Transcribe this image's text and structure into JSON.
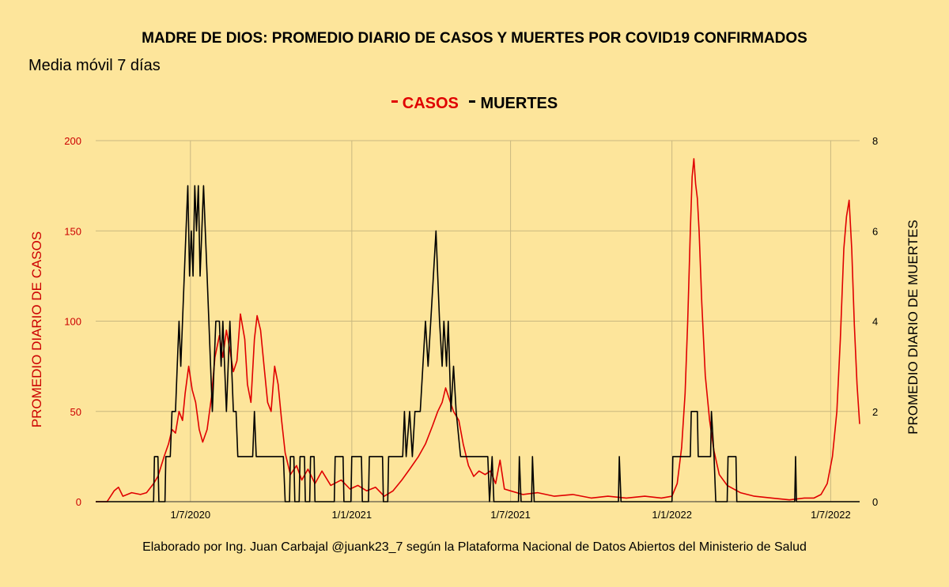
{
  "chart_data": {
    "type": "line",
    "title": "MADRE DE DIOS: PROMEDIO DIARIO DE CASOS Y MUERTES POR COVID19 CONFIRMADOS",
    "subtitle": "Media móvil 7 días",
    "ylabel": "PROMEDIO DIARIO DE CASOS",
    "y2label": "PROMEDIO DIARIO DE MUERTES",
    "ylim": [
      0,
      200
    ],
    "y2lim": [
      0,
      8
    ],
    "yticks": [
      "0",
      "50",
      "100",
      "150",
      "200"
    ],
    "y2ticks": [
      "0",
      "2",
      "4",
      "6",
      "8"
    ],
    "xticks": [
      "1/7/2020",
      "1/1/2021",
      "1/7/2021",
      "1/1/2022",
      "1/7/2022"
    ],
    "grid": true,
    "legend_position": "top",
    "series": [
      {
        "name": "CASOS",
        "axis": "left",
        "color": "#e00000",
        "points": [
          [
            "2020-03-15",
            0
          ],
          [
            "2020-03-28",
            0
          ],
          [
            "2020-04-05",
            6
          ],
          [
            "2020-04-10",
            8
          ],
          [
            "2020-04-15",
            3
          ],
          [
            "2020-04-25",
            5
          ],
          [
            "2020-05-05",
            4
          ],
          [
            "2020-05-12",
            5
          ],
          [
            "2020-05-20",
            10
          ],
          [
            "2020-05-25",
            14
          ],
          [
            "2020-06-01",
            25
          ],
          [
            "2020-06-06",
            32
          ],
          [
            "2020-06-10",
            40
          ],
          [
            "2020-06-14",
            38
          ],
          [
            "2020-06-18",
            50
          ],
          [
            "2020-06-22",
            45
          ],
          [
            "2020-06-25",
            60
          ],
          [
            "2020-06-29",
            75
          ],
          [
            "2020-07-03",
            62
          ],
          [
            "2020-07-07",
            55
          ],
          [
            "2020-07-11",
            40
          ],
          [
            "2020-07-15",
            33
          ],
          [
            "2020-07-20",
            40
          ],
          [
            "2020-07-25",
            58
          ],
          [
            "2020-07-29",
            80
          ],
          [
            "2020-08-03",
            92
          ],
          [
            "2020-08-07",
            80
          ],
          [
            "2020-08-11",
            95
          ],
          [
            "2020-08-15",
            84
          ],
          [
            "2020-08-19",
            72
          ],
          [
            "2020-08-23",
            78
          ],
          [
            "2020-08-27",
            104
          ],
          [
            "2020-09-01",
            90
          ],
          [
            "2020-09-04",
            65
          ],
          [
            "2020-09-08",
            55
          ],
          [
            "2020-09-12",
            90
          ],
          [
            "2020-09-15",
            103
          ],
          [
            "2020-09-19",
            95
          ],
          [
            "2020-09-23",
            75
          ],
          [
            "2020-09-27",
            55
          ],
          [
            "2020-10-01",
            50
          ],
          [
            "2020-10-05",
            75
          ],
          [
            "2020-10-09",
            65
          ],
          [
            "2020-10-13",
            45
          ],
          [
            "2020-10-17",
            27
          ],
          [
            "2020-10-23",
            15
          ],
          [
            "2020-10-30",
            20
          ],
          [
            "2020-11-05",
            12
          ],
          [
            "2020-11-12",
            18
          ],
          [
            "2020-11-20",
            10
          ],
          [
            "2020-11-28",
            17
          ],
          [
            "2020-12-08",
            9
          ],
          [
            "2020-12-20",
            12
          ],
          [
            "2020-12-30",
            7
          ],
          [
            "2021-01-08",
            9
          ],
          [
            "2021-01-18",
            6
          ],
          [
            "2021-01-28",
            8
          ],
          [
            "2021-02-07",
            3
          ],
          [
            "2021-02-17",
            6
          ],
          [
            "2021-02-27",
            12
          ],
          [
            "2021-03-08",
            18
          ],
          [
            "2021-03-18",
            25
          ],
          [
            "2021-03-26",
            32
          ],
          [
            "2021-04-03",
            42
          ],
          [
            "2021-04-09",
            50
          ],
          [
            "2021-04-14",
            55
          ],
          [
            "2021-04-18",
            63
          ],
          [
            "2021-04-22",
            57
          ],
          [
            "2021-04-27",
            50
          ],
          [
            "2021-05-03",
            45
          ],
          [
            "2021-05-08",
            32
          ],
          [
            "2021-05-14",
            20
          ],
          [
            "2021-05-20",
            14
          ],
          [
            "2021-05-26",
            17
          ],
          [
            "2021-06-02",
            15
          ],
          [
            "2021-06-08",
            17
          ],
          [
            "2021-06-14",
            10
          ],
          [
            "2021-06-19",
            23
          ],
          [
            "2021-06-24",
            7
          ],
          [
            "2021-07-01",
            6
          ],
          [
            "2021-07-15",
            4
          ],
          [
            "2021-08-01",
            5
          ],
          [
            "2021-08-20",
            3
          ],
          [
            "2021-09-10",
            4
          ],
          [
            "2021-10-01",
            2
          ],
          [
            "2021-10-20",
            3
          ],
          [
            "2021-11-10",
            2
          ],
          [
            "2021-12-01",
            3
          ],
          [
            "2021-12-20",
            2
          ],
          [
            "2022-01-01",
            3
          ],
          [
            "2022-01-07",
            10
          ],
          [
            "2022-01-12",
            30
          ],
          [
            "2022-01-16",
            60
          ],
          [
            "2022-01-19",
            100
          ],
          [
            "2022-01-22",
            150
          ],
          [
            "2022-01-24",
            180
          ],
          [
            "2022-01-26",
            190
          ],
          [
            "2022-01-28",
            176
          ],
          [
            "2022-01-30",
            168
          ],
          [
            "2022-02-01",
            150
          ],
          [
            "2022-02-04",
            110
          ],
          [
            "2022-02-08",
            70
          ],
          [
            "2022-02-13",
            45
          ],
          [
            "2022-02-18",
            28
          ],
          [
            "2022-02-24",
            15
          ],
          [
            "2022-03-05",
            9
          ],
          [
            "2022-03-20",
            5
          ],
          [
            "2022-04-05",
            3
          ],
          [
            "2022-04-25",
            2
          ],
          [
            "2022-05-15",
            1
          ],
          [
            "2022-06-01",
            2
          ],
          [
            "2022-06-12",
            2
          ],
          [
            "2022-06-20",
            4
          ],
          [
            "2022-06-27",
            10
          ],
          [
            "2022-07-03",
            25
          ],
          [
            "2022-07-08",
            50
          ],
          [
            "2022-07-12",
            90
          ],
          [
            "2022-07-16",
            140
          ],
          [
            "2022-07-19",
            158
          ],
          [
            "2022-07-22",
            167
          ],
          [
            "2022-07-25",
            140
          ],
          [
            "2022-07-28",
            98
          ],
          [
            "2022-07-31",
            65
          ],
          [
            "2022-08-03",
            43
          ]
        ]
      },
      {
        "name": "MUERTES",
        "axis": "right",
        "color": "#000000",
        "points": [
          [
            "2020-03-15",
            0
          ],
          [
            "2020-05-20",
            0
          ],
          [
            "2020-05-21",
            1
          ],
          [
            "2020-05-25",
            1
          ],
          [
            "2020-05-26",
            0
          ],
          [
            "2020-06-02",
            0
          ],
          [
            "2020-06-03",
            1
          ],
          [
            "2020-06-08",
            1
          ],
          [
            "2020-06-10",
            2
          ],
          [
            "2020-06-14",
            2
          ],
          [
            "2020-06-16",
            3
          ],
          [
            "2020-06-18",
            4
          ],
          [
            "2020-06-20",
            3
          ],
          [
            "2020-06-22",
            4
          ],
          [
            "2020-06-24",
            5
          ],
          [
            "2020-06-26",
            6
          ],
          [
            "2020-06-28",
            7
          ],
          [
            "2020-06-30",
            5
          ],
          [
            "2020-07-02",
            6
          ],
          [
            "2020-07-04",
            5
          ],
          [
            "2020-07-06",
            7
          ],
          [
            "2020-07-08",
            6
          ],
          [
            "2020-07-10",
            7
          ],
          [
            "2020-07-12",
            5
          ],
          [
            "2020-07-14",
            6
          ],
          [
            "2020-07-16",
            7
          ],
          [
            "2020-07-18",
            6
          ],
          [
            "2020-07-20",
            5
          ],
          [
            "2020-07-22",
            4
          ],
          [
            "2020-07-24",
            3
          ],
          [
            "2020-07-26",
            2
          ],
          [
            "2020-07-28",
            3
          ],
          [
            "2020-07-30",
            4
          ],
          [
            "2020-08-03",
            4
          ],
          [
            "2020-08-05",
            3
          ],
          [
            "2020-08-07",
            4
          ],
          [
            "2020-08-09",
            3
          ],
          [
            "2020-08-11",
            2
          ],
          [
            "2020-08-13",
            3
          ],
          [
            "2020-08-15",
            4
          ],
          [
            "2020-08-17",
            3
          ],
          [
            "2020-08-19",
            2
          ],
          [
            "2020-08-22",
            2
          ],
          [
            "2020-08-24",
            1
          ],
          [
            "2020-09-10",
            1
          ],
          [
            "2020-09-12",
            2
          ],
          [
            "2020-09-14",
            1
          ],
          [
            "2020-10-15",
            1
          ],
          [
            "2020-10-17",
            0
          ],
          [
            "2020-10-22",
            0
          ],
          [
            "2020-10-23",
            1
          ],
          [
            "2020-10-27",
            1
          ],
          [
            "2020-10-28",
            0
          ],
          [
            "2020-11-02",
            0
          ],
          [
            "2020-11-03",
            1
          ],
          [
            "2020-11-08",
            1
          ],
          [
            "2020-11-09",
            0
          ],
          [
            "2020-11-14",
            0
          ],
          [
            "2020-11-15",
            1
          ],
          [
            "2020-11-19",
            1
          ],
          [
            "2020-11-20",
            0
          ],
          [
            "2020-12-12",
            0
          ],
          [
            "2020-12-13",
            1
          ],
          [
            "2020-12-22",
            1
          ],
          [
            "2020-12-23",
            0
          ],
          [
            "2020-12-31",
            0
          ],
          [
            "2021-01-01",
            1
          ],
          [
            "2021-01-12",
            1
          ],
          [
            "2021-01-13",
            0
          ],
          [
            "2021-01-20",
            0
          ],
          [
            "2021-01-21",
            1
          ],
          [
            "2021-02-05",
            1
          ],
          [
            "2021-02-06",
            0
          ],
          [
            "2021-02-11",
            0
          ],
          [
            "2021-02-12",
            1
          ],
          [
            "2021-02-28",
            1
          ],
          [
            "2021-03-02",
            2
          ],
          [
            "2021-03-04",
            1
          ],
          [
            "2021-03-08",
            2
          ],
          [
            "2021-03-11",
            1
          ],
          [
            "2021-03-14",
            2
          ],
          [
            "2021-03-20",
            2
          ],
          [
            "2021-03-23",
            3
          ],
          [
            "2021-03-26",
            4
          ],
          [
            "2021-03-29",
            3
          ],
          [
            "2021-04-01",
            4
          ],
          [
            "2021-04-04",
            5
          ],
          [
            "2021-04-07",
            6
          ],
          [
            "2021-04-09",
            5
          ],
          [
            "2021-04-11",
            4
          ],
          [
            "2021-04-14",
            3
          ],
          [
            "2021-04-16",
            4
          ],
          [
            "2021-04-19",
            3
          ],
          [
            "2021-04-21",
            4
          ],
          [
            "2021-04-24",
            2
          ],
          [
            "2021-04-27",
            3
          ],
          [
            "2021-04-30",
            2
          ],
          [
            "2021-05-05",
            1
          ],
          [
            "2021-06-05",
            1
          ],
          [
            "2021-06-07",
            0
          ],
          [
            "2021-06-10",
            1
          ],
          [
            "2021-06-12",
            0
          ],
          [
            "2021-07-10",
            0
          ],
          [
            "2021-07-11",
            1
          ],
          [
            "2021-07-13",
            0
          ],
          [
            "2021-07-25",
            0
          ],
          [
            "2021-07-26",
            1
          ],
          [
            "2021-07-28",
            0
          ],
          [
            "2021-11-01",
            0
          ],
          [
            "2021-11-02",
            1
          ],
          [
            "2021-11-04",
            0
          ],
          [
            "2022-01-01",
            0
          ],
          [
            "2022-01-02",
            1
          ],
          [
            "2022-01-22",
            1
          ],
          [
            "2022-01-23",
            2
          ],
          [
            "2022-01-30",
            2
          ],
          [
            "2022-01-31",
            1
          ],
          [
            "2022-02-14",
            1
          ],
          [
            "2022-02-15",
            2
          ],
          [
            "2022-02-18",
            1
          ],
          [
            "2022-02-20",
            0
          ],
          [
            "2022-03-05",
            0
          ],
          [
            "2022-03-06",
            1
          ],
          [
            "2022-03-15",
            1
          ],
          [
            "2022-03-16",
            0
          ],
          [
            "2022-05-21",
            0
          ],
          [
            "2022-05-22",
            1
          ],
          [
            "2022-05-23",
            0
          ],
          [
            "2022-08-03",
            0
          ]
        ]
      }
    ]
  },
  "legend": {
    "casos_label": "CASOS",
    "muertes_label": "MUERTES",
    "casos_color": "#e00000",
    "muertes_color": "#000000"
  },
  "footer": "Elaborado por Ing. Juan Carbajal @juank23_7 según la Plataforma Nacional de Datos Abiertos del Ministerio de Salud"
}
